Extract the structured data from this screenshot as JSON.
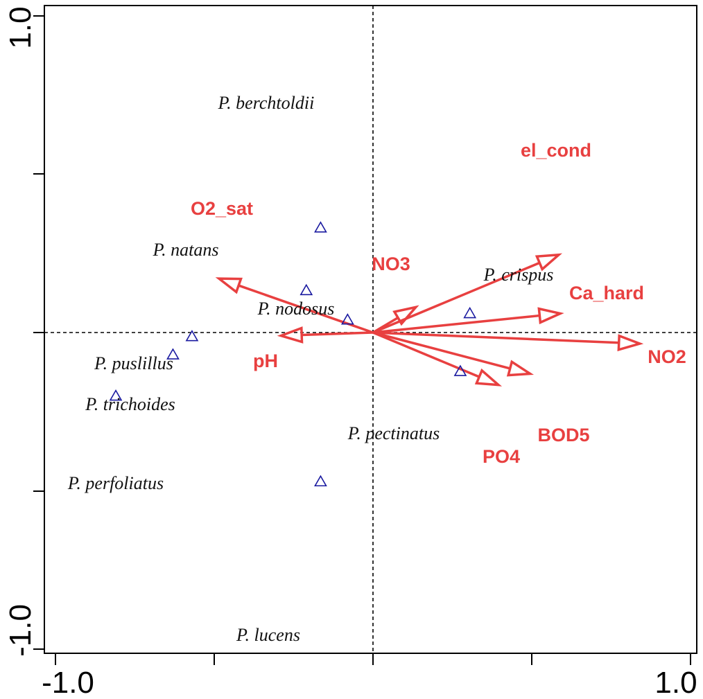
{
  "chart_data": {
    "type": "scatter",
    "subtype": "ordination-biplot",
    "title": "",
    "xlabel": "",
    "ylabel": "",
    "xlim": [
      -1.0,
      1.0
    ],
    "ylim": [
      -1.0,
      1.0
    ],
    "x_tick_labels": [
      "-1.0",
      "1.0"
    ],
    "y_tick_labels": [
      "1.0",
      "-1.0"
    ],
    "zero_lines": true,
    "arrow_color": "#e84040",
    "marker_color": "#1a1aa0",
    "species": [
      {
        "label": "P. berchtoldii",
        "x": -0.33,
        "y": 0.66
      },
      {
        "label": "P. natans",
        "x": -0.42,
        "y": 0.265
      },
      {
        "label": "P. nodosus",
        "x": -0.16,
        "y": 0.08
      },
      {
        "label": "P. crispus",
        "x": 0.61,
        "y": 0.12
      },
      {
        "label": "",
        "x": -1.14,
        "y": -0.025
      },
      {
        "label": "P. puslillus",
        "x": -1.26,
        "y": -0.14
      },
      {
        "label": "P. trichoides",
        "x": null,
        "y": null
      },
      {
        "label": "P. pectinatus",
        "x": 0.55,
        "y": -0.245
      },
      {
        "label": "P. perfoliatus",
        "x": -1.62,
        "y": -0.4
      },
      {
        "label": "P. lucens",
        "x": -0.33,
        "y": -0.94
      }
    ],
    "arrows": [
      {
        "name": "el_cond",
        "x": 1.17,
        "y": 0.49
      },
      {
        "name": "O2_sat",
        "x": -0.97,
        "y": 0.34
      },
      {
        "name": "NO3",
        "x": 0.27,
        "y": 0.16
      },
      {
        "name": "Ca_hard",
        "x": 1.18,
        "y": 0.12
      },
      {
        "name": "NO2",
        "x": 1.68,
        "y": -0.07
      },
      {
        "name": "pH",
        "x": -0.58,
        "y": -0.02
      },
      {
        "name": "BOD5",
        "x": 0.99,
        "y": -0.26
      },
      {
        "name": "PO4",
        "x": 0.79,
        "y": -0.33
      }
    ]
  }
}
